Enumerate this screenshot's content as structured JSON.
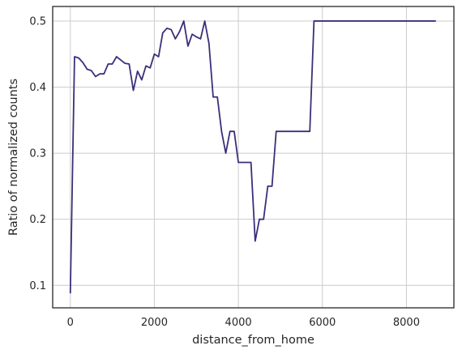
{
  "chart_data": {
    "type": "line",
    "title": "",
    "xlabel": "distance_from_home",
    "ylabel": "Ratio of normalized counts",
    "xlim": [
      -420,
      9130
    ],
    "ylim": [
      0.066,
      0.522
    ],
    "xticks": [
      0,
      2000,
      4000,
      6000,
      8000
    ],
    "xtick_labels": [
      "0",
      "2000",
      "4000",
      "6000",
      "8000"
    ],
    "yticks": [
      0.1,
      0.2,
      0.3,
      0.4,
      0.5
    ],
    "ytick_labels": [
      "0.1",
      "0.2",
      "0.3",
      "0.4",
      "0.5"
    ],
    "grid": true,
    "legend": "none",
    "colors": {
      "line": "#3b2f7a",
      "grid": "#cccccc",
      "frame": "#262626"
    },
    "series": [
      {
        "x": [
          0,
          100,
          200,
          300,
          400,
          500,
          600,
          700,
          800,
          900,
          1000,
          1100,
          1200,
          1300,
          1400,
          1500,
          1600,
          1700,
          1800,
          1900,
          2000,
          2100,
          2200,
          2300,
          2400,
          2500,
          2600,
          2700,
          2800,
          2900,
          3000,
          3100,
          3200,
          3300,
          3400,
          3500,
          3600,
          3700,
          3800,
          3900,
          4000,
          4100,
          4200,
          4300,
          4400,
          4500,
          4600,
          4700,
          4800,
          4900,
          5000,
          5100,
          5200,
          5300,
          5400,
          5500,
          5600,
          5700,
          5800,
          5900,
          6000,
          6500,
          7000,
          7500,
          8000,
          8700
        ],
        "y": [
          0.088,
          0.446,
          0.444,
          0.437,
          0.427,
          0.425,
          0.416,
          0.42,
          0.42,
          0.435,
          0.435,
          0.446,
          0.441,
          0.436,
          0.435,
          0.395,
          0.424,
          0.411,
          0.432,
          0.429,
          0.45,
          0.446,
          0.482,
          0.489,
          0.487,
          0.473,
          0.484,
          0.5,
          0.462,
          0.48,
          0.476,
          0.473,
          0.5,
          0.466,
          0.385,
          0.385,
          0.333,
          0.3,
          0.333,
          0.333,
          0.286,
          0.286,
          0.286,
          0.286,
          0.167,
          0.2,
          0.2,
          0.25,
          0.25,
          0.333,
          0.333,
          0.333,
          0.333,
          0.333,
          0.333,
          0.333,
          0.333,
          0.333,
          0.5,
          0.5,
          0.5,
          0.5,
          0.5,
          0.5,
          0.5,
          0.5
        ]
      }
    ]
  }
}
